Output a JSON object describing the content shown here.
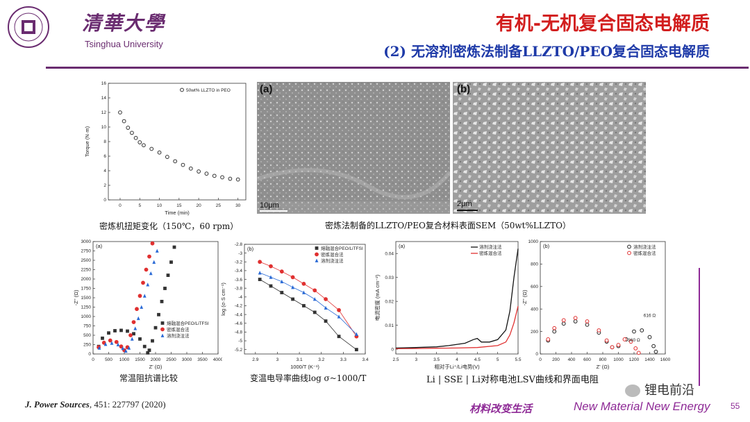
{
  "header": {
    "brand_cn": "清華大學",
    "brand_en": "Tsinghua University",
    "seal_text": "TSINGHUA UNIVERSITY 1911",
    "title": "有机-无机复合固态电解质",
    "subtitle": "(2) 无溶剂密炼法制备LLZTO/PEO复合固态电解质"
  },
  "captions": {
    "torque": "密炼机扭矩变化（150℃，60 rpm）",
    "sem": "密炼法制备的LLZTO/PEO复合材料表面SEM（50wt%LLZTO）",
    "eis": "常温阻抗谱比较",
    "arrhenius": "变温电导率曲线log σ~1000/T",
    "lsv": "Li | SSE | Li对称电池LSV曲线和界面电阻"
  },
  "sem": {
    "a_label": "(a)",
    "a_scale": "10μm",
    "b_label": "(b)",
    "b_scale": "2μm"
  },
  "footer": {
    "reference_journal": "J. Power Sources",
    "reference_rest": ", 451: 227797 (2020)",
    "slogan_cn": "材料改变生活",
    "slogan_en": "New Material New Energy",
    "page": "55",
    "watermark": "锂电前沿"
  },
  "colors": {
    "title": "#d21e1e",
    "subtitle": "#1e3aa8",
    "brand": "#6a2c70",
    "accent": "#8e2a96"
  },
  "chart_data": [
    {
      "type": "scatter",
      "id": "torque",
      "legend": [
        "50wt% LLZTO in PEO"
      ],
      "xlabel": "Time (min)",
      "ylabel": "Torque (N·m)",
      "xlim": [
        -3,
        32
      ],
      "ylim": [
        0,
        16
      ],
      "xticks": [
        0,
        5,
        10,
        15,
        20,
        25,
        30
      ],
      "yticks": [
        0,
        2,
        4,
        6,
        8,
        10,
        12,
        14,
        16
      ],
      "series": [
        {
          "name": "50wt% LLZTO in PEO",
          "x": [
            0,
            1,
            2,
            3,
            4,
            5,
            6,
            8,
            10,
            12,
            14,
            16,
            18,
            20,
            22,
            24,
            26,
            28,
            30
          ],
          "y": [
            12,
            10.8,
            9.9,
            9.2,
            8.5,
            7.9,
            7.5,
            7.0,
            6.5,
            5.9,
            5.3,
            4.8,
            4.3,
            3.9,
            3.6,
            3.3,
            3.1,
            2.9,
            2.8
          ]
        }
      ]
    },
    {
      "type": "scatter",
      "id": "eis",
      "panel": "(a)",
      "xlabel": "Z' (Ω)",
      "ylabel": "-Z'' (Ω)",
      "xlim": [
        0,
        4000
      ],
      "ylim": [
        0,
        3000
      ],
      "xticks": [
        0,
        500,
        1000,
        1500,
        2000,
        2500,
        3000,
        3500,
        4000
      ],
      "yticks": [
        0,
        250,
        500,
        750,
        1000,
        1250,
        1500,
        1750,
        2000,
        2250,
        2500,
        2750,
        3000
      ],
      "series": [
        {
          "name": "熔融混合PEO/LiTFSI",
          "color": "#333333",
          "marker": "square",
          "x": [
            180,
            300,
            500,
            700,
            900,
            1100,
            1300,
            1500,
            1650,
            1750,
            1800,
            1900,
            2000,
            2100,
            2200,
            2300,
            2400,
            2500,
            2600
          ],
          "y": [
            200,
            420,
            560,
            620,
            630,
            610,
            540,
            400,
            200,
            30,
            100,
            350,
            700,
            1050,
            1400,
            1750,
            2100,
            2450,
            2850
          ]
        },
        {
          "name": "密炼混合法",
          "color": "#e03030",
          "marker": "circle",
          "x": [
            180,
            350,
            550,
            750,
            900,
            1000,
            1100,
            1200,
            1300,
            1400,
            1500,
            1600,
            1700,
            1800,
            1900
          ],
          "y": [
            180,
            300,
            360,
            320,
            200,
            100,
            180,
            500,
            850,
            1200,
            1550,
            1900,
            2250,
            2600,
            2950
          ]
        },
        {
          "name": "溶剂浇注法",
          "color": "#2a6ad6",
          "marker": "triangle",
          "x": [
            200,
            400,
            600,
            800,
            950,
            1050,
            1150,
            1250,
            1350,
            1450,
            1550,
            1650,
            1750,
            1850,
            1950,
            2050
          ],
          "y": [
            160,
            260,
            290,
            250,
            150,
            80,
            160,
            400,
            680,
            950,
            1250,
            1550,
            1850,
            2150,
            2450,
            2750
          ]
        }
      ]
    },
    {
      "type": "line",
      "id": "arrhenius",
      "panel": "(b)",
      "xlabel": "1000/T (K⁻¹)",
      "ylabel": "log (σ·S cm⁻¹)",
      "xlim": [
        2.85,
        3.4
      ],
      "ylim": [
        -5.3,
        -2.8
      ],
      "xticks": [
        2.9,
        3.0,
        3.1,
        3.2,
        3.3,
        3.4
      ],
      "yticks": [
        -5.2,
        -5.0,
        -4.8,
        -4.6,
        -4.4,
        -4.2,
        -4.0,
        -3.8,
        -3.6,
        -3.4,
        -3.2,
        -3.0,
        -2.8
      ],
      "series": [
        {
          "name": "熔融混合PEO/LiTFSI",
          "color": "#333333",
          "marker": "square",
          "x": [
            2.92,
            2.97,
            3.02,
            3.07,
            3.12,
            3.17,
            3.22,
            3.28,
            3.36
          ],
          "y": [
            -3.6,
            -3.75,
            -3.9,
            -4.05,
            -4.2,
            -4.35,
            -4.55,
            -4.9,
            -5.2
          ]
        },
        {
          "name": "密炼混合法",
          "color": "#e03030",
          "marker": "circle",
          "x": [
            2.92,
            2.97,
            3.02,
            3.07,
            3.12,
            3.17,
            3.22,
            3.28,
            3.36
          ],
          "y": [
            -3.2,
            -3.3,
            -3.42,
            -3.55,
            -3.7,
            -3.85,
            -4.05,
            -4.3,
            -4.9
          ]
        },
        {
          "name": "溶剂浇注法",
          "color": "#2a6ad6",
          "marker": "triangle",
          "x": [
            2.92,
            2.97,
            3.02,
            3.07,
            3.12,
            3.17,
            3.22,
            3.28,
            3.36
          ],
          "y": [
            -3.45,
            -3.55,
            -3.65,
            -3.78,
            -3.9,
            -4.05,
            -4.25,
            -4.45,
            -4.85
          ]
        }
      ]
    },
    {
      "type": "line",
      "id": "lsv",
      "panel": "(a)",
      "xlabel": "相对于Li⁺/Li电势(V)",
      "ylabel": "电流密度 (mA cm⁻²)",
      "xlim": [
        2.5,
        5.5
      ],
      "ylim": [
        -0.002,
        0.045
      ],
      "xticks": [
        2.5,
        3.0,
        3.5,
        4.0,
        4.5,
        5.0,
        5.5
      ],
      "yticks": [
        0.0,
        0.01,
        0.02,
        0.03,
        0.04
      ],
      "series": [
        {
          "name": "溶剂浇注法",
          "color": "#111111",
          "x": [
            2.5,
            3.0,
            3.5,
            3.8,
            4.2,
            4.4,
            4.5,
            4.6,
            4.8,
            5.0,
            5.2,
            5.3,
            5.4,
            5.5
          ],
          "y": [
            0.0005,
            0.0007,
            0.001,
            0.0015,
            0.0025,
            0.004,
            0.0045,
            0.003,
            0.003,
            0.004,
            0.008,
            0.016,
            0.03,
            0.042
          ]
        },
        {
          "name": "密炼混合法",
          "color": "#e03030",
          "x": [
            2.5,
            3.0,
            3.5,
            4.0,
            4.5,
            5.0,
            5.2,
            5.3,
            5.4,
            5.5
          ],
          "y": [
            0.0002,
            0.0003,
            0.0004,
            0.0005,
            0.0007,
            0.0015,
            0.003,
            0.006,
            0.011,
            0.018
          ]
        }
      ]
    },
    {
      "type": "scatter",
      "id": "nyquist",
      "panel": "(b)",
      "xlabel": "Z' (Ω)",
      "ylabel": "-Z'' (Ω)",
      "xlim": [
        0,
        1600
      ],
      "ylim": [
        0,
        1000
      ],
      "xticks": [
        0,
        200,
        400,
        600,
        800,
        1000,
        1200,
        1400,
        1600
      ],
      "yticks": [
        0,
        200,
        400,
        600,
        800,
        1000
      ],
      "annotations": [
        "616 Ω",
        "360 Ω"
      ],
      "series": [
        {
          "name": "溶剂浇注法",
          "color": "#222222",
          "marker": "circle",
          "x": [
            100,
            180,
            300,
            450,
            600,
            750,
            850,
            920,
            1000,
            1100,
            1200,
            1300,
            1400,
            1450,
            1480
          ],
          "y": [
            120,
            200,
            270,
            290,
            260,
            190,
            110,
            60,
            70,
            130,
            200,
            210,
            150,
            70,
            20
          ]
        },
        {
          "name": "密炼混合法",
          "color": "#e03030",
          "marker": "circle",
          "x": [
            100,
            180,
            300,
            450,
            600,
            750,
            850,
            920,
            1000,
            1080,
            1160,
            1220,
            1260
          ],
          "y": [
            130,
            230,
            300,
            320,
            290,
            210,
            120,
            60,
            80,
            130,
            110,
            50,
            10
          ]
        }
      ]
    }
  ]
}
